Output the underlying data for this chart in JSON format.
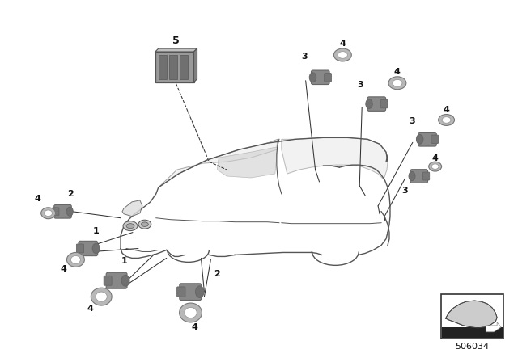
{
  "background_color": "#ffffff",
  "part_number": "506034",
  "fig_width": 6.4,
  "fig_height": 4.48,
  "dpi": 100,
  "car_color": "#555555",
  "sensor_color": "#888888",
  "sensor_light": "#aaaaaa",
  "sensor_dark": "#666666",
  "ring_color": "#999999",
  "ecu_color": "#909090",
  "line_color": "#333333",
  "label_color": "#111111"
}
